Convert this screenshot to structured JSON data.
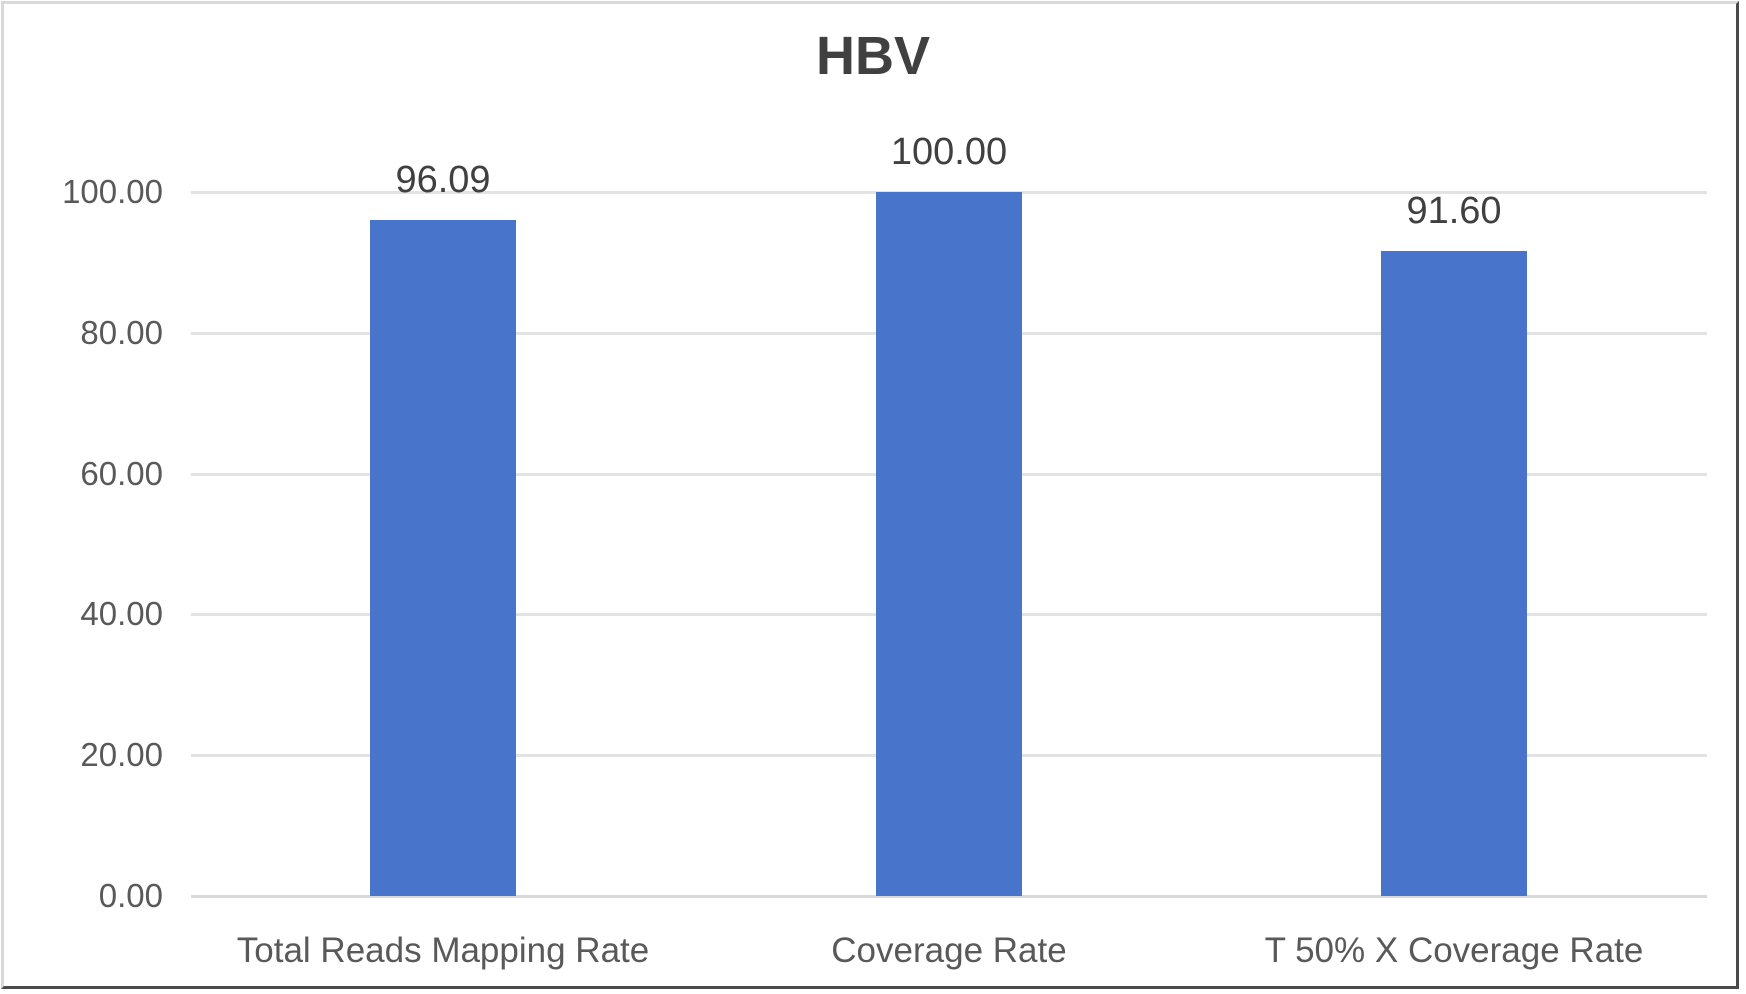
{
  "chart_data": {
    "type": "bar",
    "title": "HBV",
    "xlabel": "",
    "ylabel": "",
    "categories": [
      "Total Reads Mapping Rate",
      "Coverage Rate",
      "T 50% X Coverage Rate"
    ],
    "values": [
      96.09,
      100.0,
      91.6
    ],
    "value_labels": [
      "96.09",
      "100.00",
      "91.60"
    ],
    "ylim": [
      0,
      100
    ],
    "yticks": [
      "0.00",
      "20.00",
      "40.00",
      "60.00",
      "80.00",
      "100.00"
    ],
    "grid": true,
    "legend": null,
    "bar_color": "#4874cb"
  }
}
